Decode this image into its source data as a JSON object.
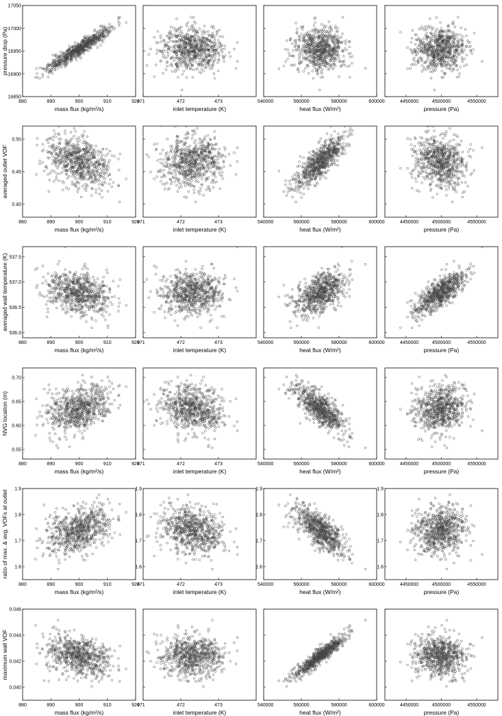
{
  "chart_data": {
    "type": "scatter",
    "grid": false,
    "columns": [
      {
        "xlabel": "mass flux (kg/m²/s)",
        "xlim": [
          880,
          920
        ],
        "xticks": [
          880,
          890,
          900,
          910,
          920
        ],
        "xtick_labels": [
          "880",
          "890",
          "900",
          "910",
          "920"
        ],
        "mean": 900,
        "sd": 6
      },
      {
        "xlabel": "inlet temperature (K)",
        "xlim": [
          471,
          474
        ],
        "xticks": [
          471,
          472,
          473
        ],
        "xtick_labels": [
          "471",
          "472",
          "473"
        ],
        "mean": 472.3,
        "sd": 0.4
      },
      {
        "xlabel": "heat flux (W/m²)",
        "xlim": [
          540000,
          600000
        ],
        "xticks": [
          540000,
          560000,
          580000,
          600000
        ],
        "xtick_labels": [
          "540000",
          "560000",
          "580000",
          "600000"
        ],
        "mean": 570000,
        "sd": 7000
      },
      {
        "xlabel": "pressure (Pa)",
        "xlim": [
          4420000,
          4580000
        ],
        "xticks": [
          4450000,
          4500000,
          4550000
        ],
        "xtick_labels": [
          "4450000",
          "4500000",
          "4550000"
        ],
        "mean": 4500000,
        "sd": 18000
      }
    ],
    "rows": [
      {
        "ylabel": "pressure drop (Pa)",
        "ylim": [
          16850,
          17050
        ],
        "yticks": [
          16850,
          16900,
          16950,
          17000,
          17050
        ],
        "ytick_labels": [
          "16850",
          "16900",
          "16950",
          "17000",
          "17050"
        ],
        "mean": 16955,
        "sd": 25,
        "correlations": [
          0.95,
          0.0,
          0.0,
          0.0
        ]
      },
      {
        "ylabel": "averaged outlet VOF",
        "ylim": [
          0.38,
          0.52
        ],
        "yticks": [
          0.4,
          0.45,
          0.5
        ],
        "ytick_labels": [
          "0.40",
          "0.45",
          "0.50"
        ],
        "mean": 0.465,
        "sd": 0.02,
        "correlations": [
          -0.35,
          0.1,
          0.8,
          -0.05
        ]
      },
      {
        "ylabel": "averaged wall temperature (K)",
        "ylim": [
          535.9,
          537.7
        ],
        "yticks": [
          536.0,
          536.5,
          537.0,
          537.5
        ],
        "ytick_labels": [
          "536.0",
          "536.5",
          "537.0",
          "537.5"
        ],
        "mean": 536.8,
        "sd": 0.22,
        "correlations": [
          -0.3,
          0.05,
          0.55,
          0.8
        ]
      },
      {
        "ylabel": "NVG location (m)",
        "ylim": [
          0.53,
          0.72
        ],
        "yticks": [
          0.55,
          0.6,
          0.65,
          0.7
        ],
        "ytick_labels": [
          "0.55",
          "0.60",
          "0.65",
          "0.70"
        ],
        "mean": 0.635,
        "sd": 0.025,
        "correlations": [
          0.35,
          -0.2,
          -0.75,
          0.05
        ]
      },
      {
        "ylabel": "ratio of max. & avg. VOFs at outlet",
        "ylim": [
          1.55,
          1.9
        ],
        "yticks": [
          1.6,
          1.7,
          1.8,
          1.9
        ],
        "ytick_labels": [
          "1.6",
          "1.7",
          "1.8",
          "1.9"
        ],
        "mean": 1.74,
        "sd": 0.045,
        "correlations": [
          0.35,
          -0.2,
          -0.75,
          0.05
        ]
      },
      {
        "ylabel": "maximum wall VOF",
        "ylim": [
          0.039,
          0.046
        ],
        "yticks": [
          0.04,
          0.042,
          0.044,
          0.046
        ],
        "ytick_labels": [
          "0.040",
          "0.042",
          "0.044",
          "0.046"
        ],
        "mean": 0.0424,
        "sd": 0.0008,
        "correlations": [
          -0.3,
          0.0,
          0.95,
          0.0
        ]
      }
    ]
  }
}
